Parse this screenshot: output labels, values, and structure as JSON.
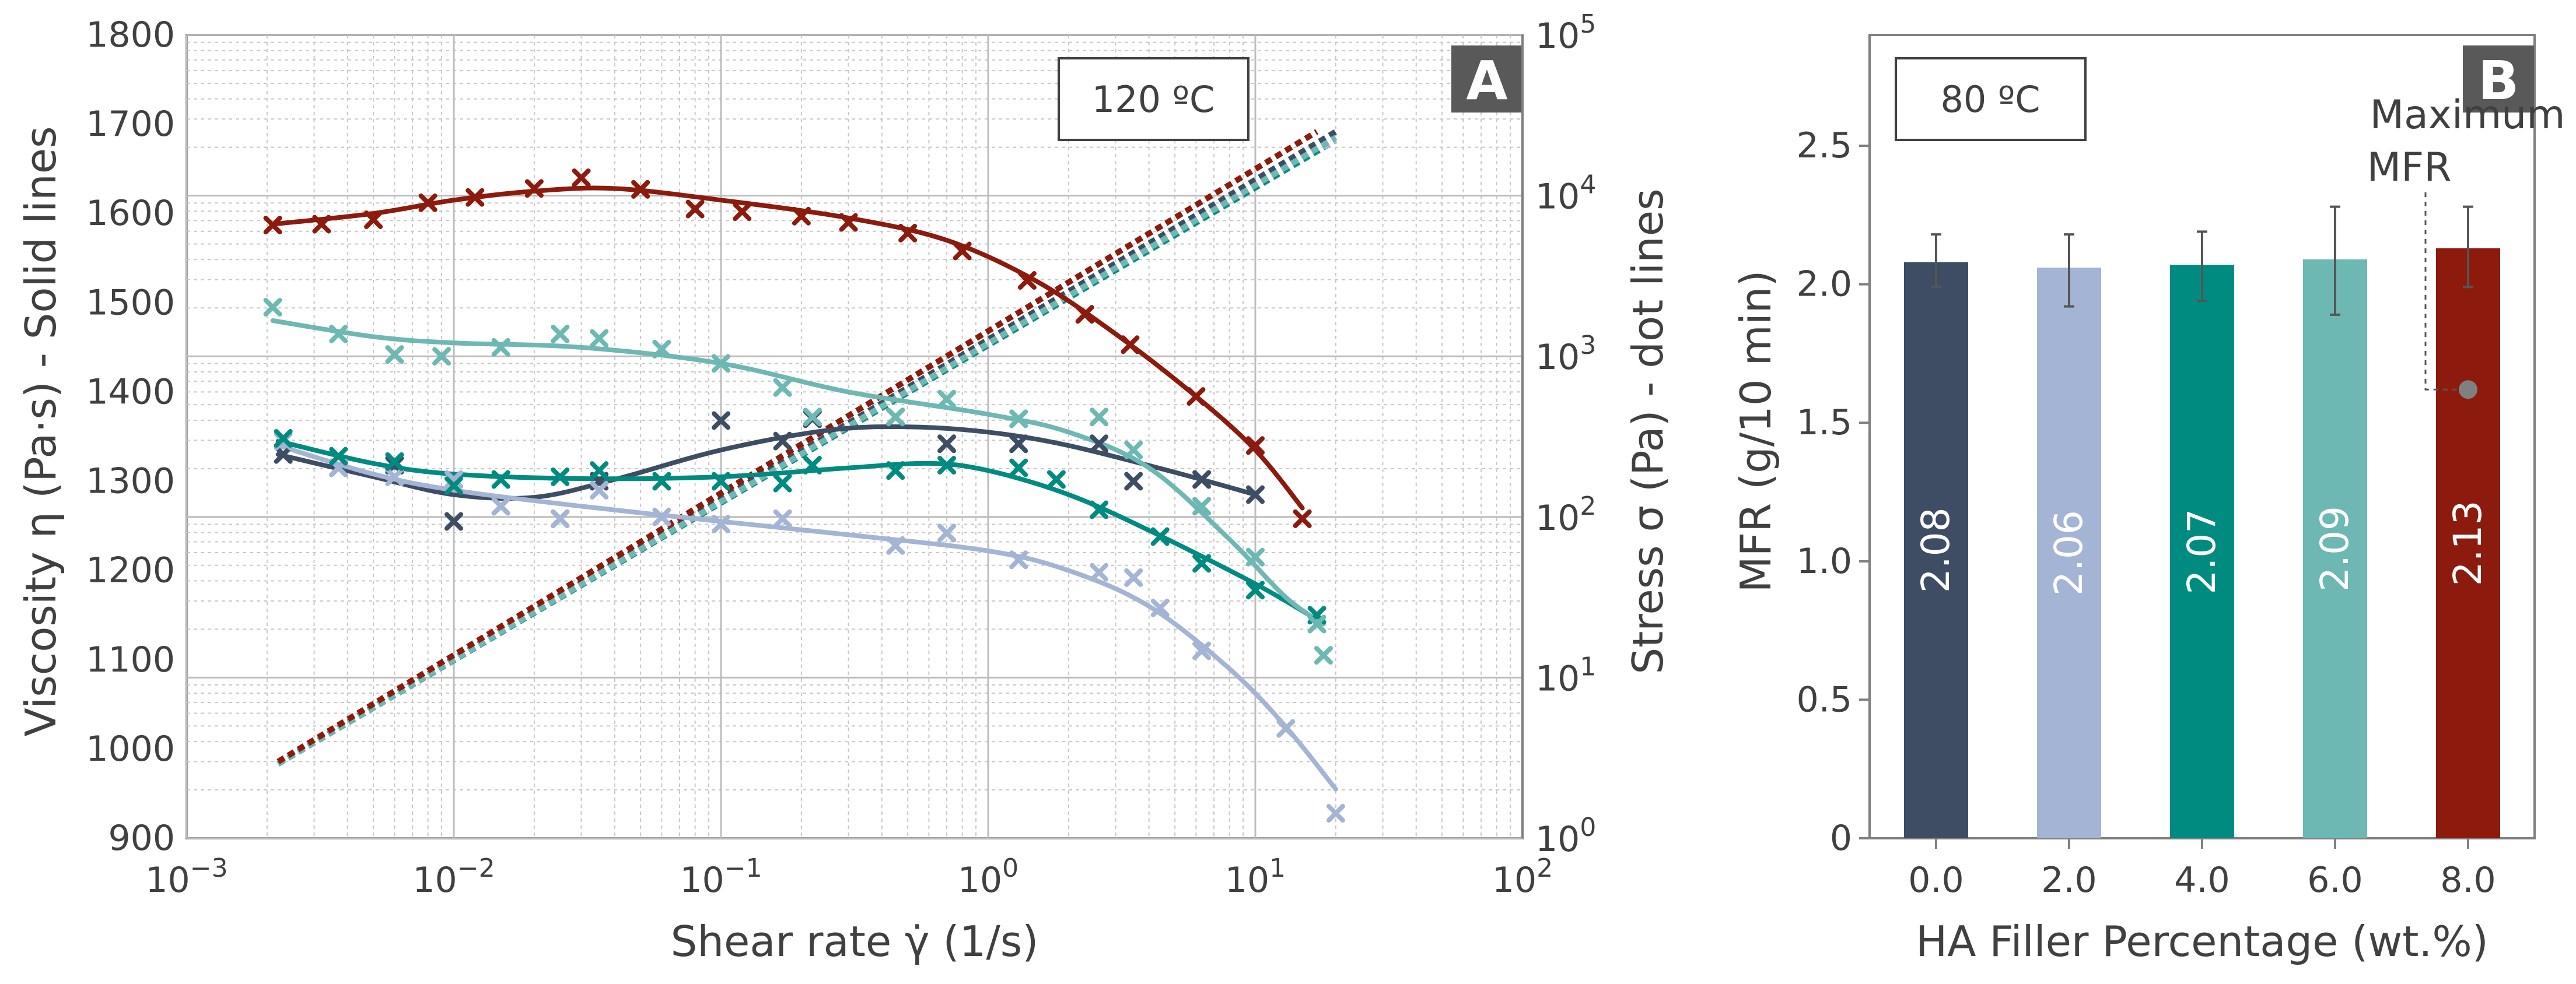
{
  "chart_data": [
    {
      "panel": "A",
      "type": "line",
      "annotation": "120 ºC",
      "xlabel": "Shear rate γ̇  (1/s)",
      "ylabel_left": "Viscosity η (Pa·s) - Solid lines",
      "ylabel_right": "Stress σ (Pa) - dot lines",
      "xscale": "log",
      "xlim": [
        0.001,
        100
      ],
      "x_ticks": [
        {
          "base": "10",
          "exp": "−3",
          "value": 0.001
        },
        {
          "base": "10",
          "exp": "−2",
          "value": 0.01
        },
        {
          "base": "10",
          "exp": "−1",
          "value": 0.1
        },
        {
          "base": "10",
          "exp": "0",
          "value": 1
        },
        {
          "base": "10",
          "exp": "1",
          "value": 10
        },
        {
          "base": "10",
          "exp": "2",
          "value": 100
        }
      ],
      "ylim_left": [
        900,
        1800
      ],
      "y_ticks_left": [
        "900",
        "1000",
        "1100",
        "1200",
        "1300",
        "1400",
        "1500",
        "1600",
        "1700",
        "1800"
      ],
      "yscale_right": "log",
      "ylim_right": [
        1,
        100000
      ],
      "y_ticks_right": [
        {
          "base": "10",
          "exp": "0",
          "value": 1
        },
        {
          "base": "10",
          "exp": "1",
          "value": 10
        },
        {
          "base": "10",
          "exp": "2",
          "value": 100
        },
        {
          "base": "10",
          "exp": "3",
          "value": 1000
        },
        {
          "base": "10",
          "exp": "4",
          "value": 10000
        },
        {
          "base": "10",
          "exp": "5",
          "value": 100000
        }
      ],
      "grid": true,
      "series": [
        {
          "name": "0.0 wt.%",
          "color": "#3d4d63",
          "points": [
            [
              0.0023,
              1330
            ],
            [
              0.0037,
              1315
            ],
            [
              0.006,
              1318
            ],
            [
              0.01,
              1255
            ],
            [
              0.015,
              1272
            ],
            [
              0.025,
              1258
            ],
            [
              0.035,
              1300
            ],
            [
              0.1,
              1368
            ],
            [
              0.17,
              1345
            ],
            [
              0.22,
              1370
            ],
            [
              0.45,
              1372
            ],
            [
              0.7,
              1342
            ],
            [
              1.3,
              1342
            ],
            [
              2.6,
              1342
            ],
            [
              3.5,
              1300
            ],
            [
              6.3,
              1302
            ],
            [
              10,
              1285
            ]
          ],
          "fit": [
            [
              0.0022,
              1330
            ],
            [
              0.005,
              1305
            ],
            [
              0.01,
              1285
            ],
            [
              0.02,
              1282
            ],
            [
              0.04,
              1302
            ],
            [
              0.1,
              1335
            ],
            [
              0.25,
              1357
            ],
            [
              0.5,
              1361
            ],
            [
              1,
              1355
            ],
            [
              2,
              1340
            ],
            [
              5,
              1310
            ],
            [
              10,
              1285
            ]
          ],
          "stress": [
            [
              0.0022,
              2.9
            ],
            [
              20,
              25000
            ]
          ]
        },
        {
          "name": "2.0 wt.%",
          "color": "#a3b4d4",
          "points": [
            [
              0.0023,
              1345
            ],
            [
              0.0037,
              1315
            ],
            [
              0.006,
              1305
            ],
            [
              0.01,
              1302
            ],
            [
              0.015,
              1272
            ],
            [
              0.025,
              1258
            ],
            [
              0.035,
              1290
            ],
            [
              0.06,
              1260
            ],
            [
              0.1,
              1252
            ],
            [
              0.17,
              1258
            ],
            [
              0.45,
              1228
            ],
            [
              0.7,
              1242
            ],
            [
              1.3,
              1212
            ],
            [
              2.6,
              1198
            ],
            [
              3.5,
              1192
            ],
            [
              4.4,
              1158
            ],
            [
              6.3,
              1110
            ],
            [
              13,
              1023
            ],
            [
              20,
              928
            ]
          ],
          "fit": [
            [
              0.0022,
              1340
            ],
            [
              0.005,
              1308
            ],
            [
              0.01,
              1290
            ],
            [
              0.03,
              1272
            ],
            [
              0.1,
              1255
            ],
            [
              0.3,
              1240
            ],
            [
              1,
              1222
            ],
            [
              2,
              1200
            ],
            [
              4,
              1160
            ],
            [
              8,
              1090
            ],
            [
              13,
              1025
            ],
            [
              20,
              955
            ]
          ],
          "stress": [
            [
              0.0022,
              2.9
            ],
            [
              20,
              22000
            ]
          ]
        },
        {
          "name": "4.0 wt.%",
          "color": "#008b80",
          "points": [
            [
              0.0023,
              1348
            ],
            [
              0.0037,
              1328
            ],
            [
              0.006,
              1322
            ],
            [
              0.01,
              1295
            ],
            [
              0.015,
              1302
            ],
            [
              0.025,
              1305
            ],
            [
              0.035,
              1312
            ],
            [
              0.06,
              1300
            ],
            [
              0.1,
              1300
            ],
            [
              0.17,
              1298
            ],
            [
              0.22,
              1318
            ],
            [
              0.45,
              1312
            ],
            [
              0.7,
              1318
            ],
            [
              1.3,
              1315
            ],
            [
              1.8,
              1302
            ],
            [
              2.6,
              1268
            ],
            [
              4.4,
              1238
            ],
            [
              6.3,
              1208
            ],
            [
              10,
              1178
            ],
            [
              17,
              1150
            ]
          ],
          "fit": [
            [
              0.0022,
              1345
            ],
            [
              0.005,
              1320
            ],
            [
              0.01,
              1308
            ],
            [
              0.03,
              1303
            ],
            [
              0.1,
              1305
            ],
            [
              0.3,
              1315
            ],
            [
              0.6,
              1320
            ],
            [
              1,
              1312
            ],
            [
              2,
              1285
            ],
            [
              4,
              1245
            ],
            [
              10,
              1185
            ],
            [
              17,
              1145
            ]
          ],
          "stress": [
            [
              0.0022,
              2.9
            ],
            [
              18,
              20000
            ]
          ]
        },
        {
          "name": "6.0 wt.%",
          "color": "#6db8b2",
          "points": [
            [
              0.0021,
              1495
            ],
            [
              0.0037,
              1465
            ],
            [
              0.006,
              1442
            ],
            [
              0.009,
              1440
            ],
            [
              0.015,
              1450
            ],
            [
              0.025,
              1465
            ],
            [
              0.035,
              1460
            ],
            [
              0.06,
              1448
            ],
            [
              0.1,
              1432
            ],
            [
              0.17,
              1405
            ],
            [
              0.22,
              1372
            ],
            [
              0.45,
              1372
            ],
            [
              0.7,
              1392
            ],
            [
              1.3,
              1370
            ],
            [
              2.6,
              1372
            ],
            [
              3.5,
              1335
            ],
            [
              6.3,
              1272
            ],
            [
              10,
              1215
            ],
            [
              17,
              1140
            ],
            [
              18,
              1105
            ]
          ],
          "fit": [
            [
              0.0021,
              1480
            ],
            [
              0.005,
              1462
            ],
            [
              0.01,
              1455
            ],
            [
              0.03,
              1450
            ],
            [
              0.1,
              1432
            ],
            [
              0.3,
              1400
            ],
            [
              1,
              1375
            ],
            [
              2,
              1355
            ],
            [
              4,
              1315
            ],
            [
              8,
              1235
            ],
            [
              13,
              1170
            ],
            [
              18,
              1140
            ]
          ],
          "stress": [
            [
              0.0022,
              2.9
            ],
            [
              20,
              23000
            ]
          ]
        },
        {
          "name": "8.0 wt.%",
          "color": "#8c1a0d",
          "points": [
            [
              0.0021,
              1587
            ],
            [
              0.0032,
              1588
            ],
            [
              0.005,
              1593
            ],
            [
              0.008,
              1612
            ],
            [
              0.012,
              1618
            ],
            [
              0.02,
              1628
            ],
            [
              0.03,
              1640
            ],
            [
              0.05,
              1627
            ],
            [
              0.08,
              1605
            ],
            [
              0.12,
              1602
            ],
            [
              0.2,
              1597
            ],
            [
              0.3,
              1590
            ],
            [
              0.5,
              1578
            ],
            [
              0.8,
              1558
            ],
            [
              1.4,
              1525
            ],
            [
              2.3,
              1487
            ],
            [
              3.4,
              1453
            ],
            [
              6,
              1395
            ],
            [
              10,
              1340
            ],
            [
              15,
              1258
            ]
          ],
          "fit": [
            [
              0.0021,
              1588
            ],
            [
              0.005,
              1600
            ],
            [
              0.01,
              1615
            ],
            [
              0.02,
              1625
            ],
            [
              0.04,
              1628
            ],
            [
              0.1,
              1615
            ],
            [
              0.3,
              1595
            ],
            [
              0.7,
              1570
            ],
            [
              1.5,
              1525
            ],
            [
              3,
              1465
            ],
            [
              6,
              1395
            ],
            [
              10,
              1335
            ],
            [
              15,
              1270
            ]
          ],
          "stress": [
            [
              0.0022,
              3.0
            ],
            [
              17,
              25000
            ]
          ]
        }
      ]
    },
    {
      "panel": "B",
      "type": "bar",
      "annotation": "80 ºC",
      "xlabel": "HA Filler Percentage (wt.%)",
      "ylabel": "MFR (g/10 min)",
      "categories": [
        "0.0",
        "2.0",
        "4.0",
        "6.0",
        "8.0"
      ],
      "values": [
        2.08,
        2.06,
        2.07,
        2.09,
        2.13
      ],
      "value_labels": [
        "2.08",
        "2.06",
        "2.07",
        "2.09",
        "2.13"
      ],
      "error_upper": [
        2.18,
        2.18,
        2.19,
        2.28,
        2.28
      ],
      "error_lower": [
        1.99,
        1.92,
        1.94,
        1.89,
        1.99
      ],
      "colors": [
        "#3e4d63",
        "#a3b4d4",
        "#008b80",
        "#6db8b2",
        "#8c1a0d"
      ],
      "ylim": [
        0,
        2.9
      ],
      "y_ticks": [
        "0",
        "0.5",
        "1.0",
        "1.5",
        "2.0",
        "2.5"
      ],
      "annotation_callout": {
        "lines": [
          "Maximum",
          "MFR"
        ],
        "marker_value": 1.62
      }
    }
  ]
}
